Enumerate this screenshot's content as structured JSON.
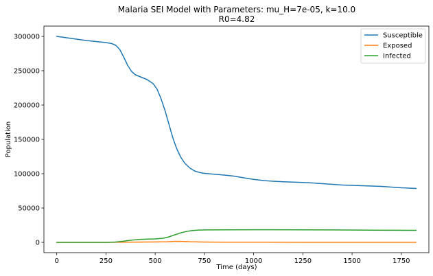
{
  "chart_data": {
    "type": "line",
    "title_line1": "Malaria SEI Model with Parameters: mu_H=7e-05, k=10.0",
    "title_line2": "R0=4.82",
    "xlabel": "Time (days)",
    "ylabel": "Population",
    "xlim": [
      -65,
      1890
    ],
    "ylim": [
      -15000,
      315000
    ],
    "xticks": [
      0,
      250,
      500,
      750,
      1000,
      1250,
      1500,
      1750
    ],
    "yticks": [
      0,
      50000,
      100000,
      150000,
      200000,
      250000,
      300000
    ],
    "grid": false,
    "legend_position": "top-right",
    "series": [
      {
        "name": "Susceptible",
        "color": "#1f77b4",
        "points": [
          [
            0,
            300000
          ],
          [
            50,
            298000
          ],
          [
            100,
            296000
          ],
          [
            150,
            294000
          ],
          [
            200,
            292500
          ],
          [
            250,
            291000
          ],
          [
            280,
            289500
          ],
          [
            300,
            287000
          ],
          [
            320,
            281000
          ],
          [
            340,
            270000
          ],
          [
            360,
            258000
          ],
          [
            380,
            249000
          ],
          [
            400,
            244000
          ],
          [
            430,
            240500
          ],
          [
            460,
            237000
          ],
          [
            490,
            231000
          ],
          [
            510,
            223000
          ],
          [
            530,
            209000
          ],
          [
            550,
            192000
          ],
          [
            570,
            172000
          ],
          [
            590,
            152000
          ],
          [
            610,
            136000
          ],
          [
            630,
            124000
          ],
          [
            650,
            115500
          ],
          [
            675,
            108500
          ],
          [
            700,
            104000
          ],
          [
            725,
            101800
          ],
          [
            750,
            100500
          ],
          [
            800,
            99300
          ],
          [
            850,
            98000
          ],
          [
            900,
            96500
          ],
          [
            950,
            94000
          ],
          [
            1000,
            91800
          ],
          [
            1050,
            90000
          ],
          [
            1100,
            89000
          ],
          [
            1150,
            88300
          ],
          [
            1200,
            87700
          ],
          [
            1250,
            87200
          ],
          [
            1300,
            86500
          ],
          [
            1350,
            85500
          ],
          [
            1400,
            84500
          ],
          [
            1450,
            83500
          ],
          [
            1500,
            83000
          ],
          [
            1550,
            82500
          ],
          [
            1600,
            82000
          ],
          [
            1650,
            81500
          ],
          [
            1700,
            80500
          ],
          [
            1750,
            79500
          ],
          [
            1825,
            78500
          ]
        ]
      },
      {
        "name": "Exposed",
        "color": "#ff7f0e",
        "points": [
          [
            0,
            0
          ],
          [
            250,
            0
          ],
          [
            300,
            150
          ],
          [
            400,
            350
          ],
          [
            500,
            600
          ],
          [
            560,
            900
          ],
          [
            600,
            1400
          ],
          [
            640,
            1400
          ],
          [
            680,
            900
          ],
          [
            750,
            500
          ],
          [
            850,
            300
          ],
          [
            1000,
            200
          ],
          [
            1250,
            180
          ],
          [
            1500,
            160
          ],
          [
            1825,
            150
          ]
        ]
      },
      {
        "name": "Infected",
        "color": "#2ca02c",
        "points": [
          [
            0,
            0
          ],
          [
            250,
            0
          ],
          [
            300,
            500
          ],
          [
            340,
            1800
          ],
          [
            380,
            3200
          ],
          [
            420,
            4200
          ],
          [
            460,
            4700
          ],
          [
            500,
            5000
          ],
          [
            540,
            6000
          ],
          [
            570,
            8000
          ],
          [
            600,
            11000
          ],
          [
            630,
            13800
          ],
          [
            660,
            16000
          ],
          [
            690,
            17300
          ],
          [
            720,
            17900
          ],
          [
            760,
            18100
          ],
          [
            850,
            18200
          ],
          [
            1000,
            18400
          ],
          [
            1100,
            18400
          ],
          [
            1250,
            18300
          ],
          [
            1400,
            18100
          ],
          [
            1600,
            17800
          ],
          [
            1825,
            17500
          ]
        ]
      }
    ]
  }
}
